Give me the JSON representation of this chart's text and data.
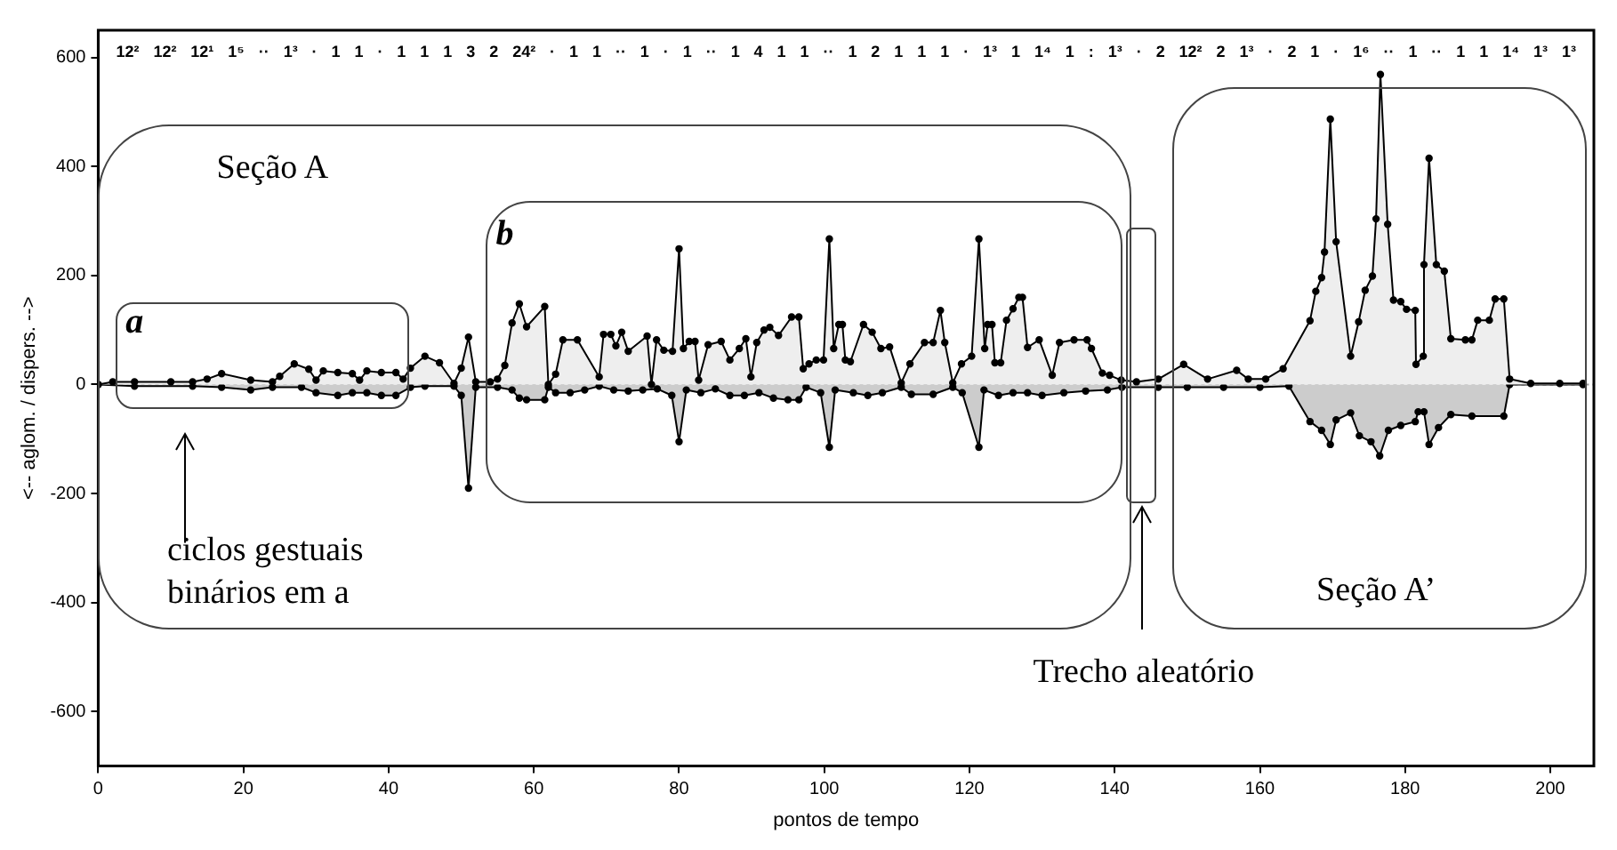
{
  "chart_data": {
    "type": "area",
    "xlabel": "pontos de tempo",
    "ylabel": "<-- aglom. / dispers. -->",
    "xlim": [
      0,
      206
    ],
    "ylim": [
      -700,
      650
    ],
    "xticks": [
      0,
      20,
      40,
      60,
      80,
      100,
      120,
      140,
      160,
      180,
      200
    ],
    "yticks": [
      -600,
      -400,
      -200,
      0,
      200,
      400,
      600
    ],
    "grid": false,
    "legend": false,
    "marker": "circle",
    "ref_lines": [
      {
        "axis": "y",
        "value": 0,
        "color": "#999999",
        "line_style": "dotted"
      }
    ],
    "annotations": [
      "12² 12² 12¹ 1⁵ ·· 1³ · 1 1 · 1 1 1 3 2 24² · 1 1 ·· 1 · 1 ·· 1 4 1 1 ·· 1 2 1 1 1 · 1³ 1 1⁴ 1 : 1³ · 2 12² 2 1³ · 2 1 · 1⁶ ·· 1 ·· 1 1 1⁴ 1³ 1³",
      "Seção A",
      "a",
      "b",
      "ciclos gestuais binários em a",
      "Trecho aleatório",
      "Seção A’"
    ],
    "series": [
      {
        "color": "#eeeeee",
        "x": [
          0,
          2,
          5,
          10,
          13,
          15,
          17,
          21,
          24,
          25,
          27,
          29,
          30,
          31,
          33,
          35,
          36,
          37,
          39,
          41,
          42,
          43,
          45,
          47,
          49,
          50,
          51,
          52,
          54,
          55,
          56,
          57,
          58,
          59,
          61.5,
          62,
          63,
          64,
          66,
          69,
          69.6,
          70.6,
          71.3,
          72.1,
          73,
          75.6,
          76.2,
          76.9,
          77.9,
          79.1,
          80,
          80.6,
          81.4,
          82.2,
          82.7,
          84,
          85.8,
          87,
          88.3,
          89.2,
          89.9,
          90.7,
          91.7,
          92.5,
          93.7,
          95.5,
          96.5,
          97.1,
          97.9,
          98.9,
          99.9,
          100.7,
          101.3,
          102,
          102.5,
          102.9,
          103.6,
          105.4,
          106.6,
          107.8,
          109,
          110.6,
          111.8,
          113.8,
          115,
          116,
          116.6,
          117.7,
          118.9,
          120.3,
          121.3,
          122.1,
          122.5,
          123.1,
          123.5,
          124.3,
          125.1,
          126,
          126.8,
          127.3,
          128,
          129.6,
          131.4,
          132.4,
          134.4,
          136.2,
          136.8,
          138.3,
          139.3,
          140.9,
          143,
          146,
          149.5,
          152.8,
          156.8,
          158.4,
          160.8,
          163.2,
          166.9,
          167.7,
          168.5,
          168.9,
          169.7,
          170.5,
          172.5,
          173.6,
          174.5,
          175.5,
          176,
          176.6,
          177.6,
          178.4,
          179.4,
          180.2,
          181.4,
          181.5,
          182.5,
          182.6,
          183.3,
          184.3,
          185.4,
          186.3,
          188.3,
          189.2,
          190,
          191.6,
          192.4,
          193.6,
          194.4,
          197.3,
          201.3,
          204.5
        ],
        "values": [
          0,
          5,
          5,
          5,
          5,
          10,
          20,
          8,
          5,
          15,
          38,
          28,
          8,
          25,
          22,
          20,
          8,
          25,
          22,
          22,
          10,
          30,
          52,
          40,
          2,
          30,
          87,
          5,
          5,
          10,
          35,
          113,
          148,
          106,
          143,
          0,
          19,
          82,
          82,
          14,
          92,
          92,
          71,
          96,
          61,
          89,
          0,
          82,
          63,
          61,
          249,
          66,
          79,
          79,
          8,
          73,
          79,
          45,
          66,
          84,
          14,
          77,
          100,
          105,
          90,
          124,
          124,
          29,
          38,
          45,
          45,
          267,
          66,
          110,
          110,
          45,
          42,
          110,
          96,
          66,
          69,
          3,
          38,
          77,
          77,
          136,
          77,
          3,
          38,
          52,
          267,
          66,
          110,
          110,
          40,
          40,
          118,
          139,
          160,
          160,
          68,
          82,
          17,
          77,
          82,
          82,
          66,
          21,
          17,
          8,
          5,
          10,
          37,
          10,
          26,
          10,
          10,
          29,
          117,
          171,
          196,
          243,
          487,
          262,
          52,
          115,
          173,
          199,
          304,
          569,
          294,
          155,
          152,
          138,
          136,
          37,
          52,
          220,
          415,
          220,
          208,
          84,
          82,
          82,
          118,
          118,
          157,
          157,
          10,
          2,
          2,
          2
        ]
      },
      {
        "color": "#cccccc",
        "x": [
          0,
          5,
          13,
          17,
          21,
          24,
          28,
          30,
          33,
          35,
          37,
          39,
          41,
          43,
          45,
          49,
          50,
          51,
          52,
          55,
          57,
          58,
          59,
          61.5,
          62,
          63,
          65,
          67,
          69,
          71,
          73,
          75,
          77,
          79,
          80,
          81,
          83,
          85,
          87,
          89,
          91,
          93,
          95,
          96.5,
          97.5,
          99.5,
          100.7,
          101.5,
          104,
          106,
          108,
          110.6,
          112,
          115,
          117.7,
          119,
          121.3,
          122,
          124,
          126,
          128,
          130,
          133,
          136,
          139,
          141,
          146,
          150,
          155,
          160,
          164,
          166.9,
          168.5,
          169.7,
          170.5,
          172.5,
          173.7,
          175.3,
          176.5,
          177.7,
          179.4,
          181.4,
          181.8,
          182.6,
          183.3,
          184.6,
          186.3,
          189.2,
          193.6,
          194.4,
          204.5
        ],
        "values": [
          0,
          -3,
          -3,
          -5,
          -10,
          -5,
          -5,
          -15,
          -20,
          -15,
          -15,
          -20,
          -20,
          -5,
          -3,
          -3,
          -20,
          -190,
          -5,
          -5,
          -10,
          -25,
          -28,
          -28,
          -5,
          -15,
          -15,
          -10,
          -3,
          -10,
          -12,
          -10,
          -8,
          -20,
          -105,
          -10,
          -15,
          -8,
          -20,
          -20,
          -15,
          -25,
          -28,
          -28,
          -5,
          -15,
          -115,
          -10,
          -15,
          -20,
          -15,
          -5,
          -18,
          -18,
          -5,
          -15,
          -115,
          -10,
          -20,
          -15,
          -15,
          -20,
          -15,
          -12,
          -10,
          -5,
          -5,
          -5,
          -5,
          -5,
          -3,
          -68,
          -84,
          -110,
          -65,
          -52,
          -94,
          -105,
          -131,
          -84,
          -75,
          -68,
          -50,
          -50,
          -110,
          -79,
          -55,
          -58,
          -58,
          0,
          0
        ]
      }
    ]
  }
}
